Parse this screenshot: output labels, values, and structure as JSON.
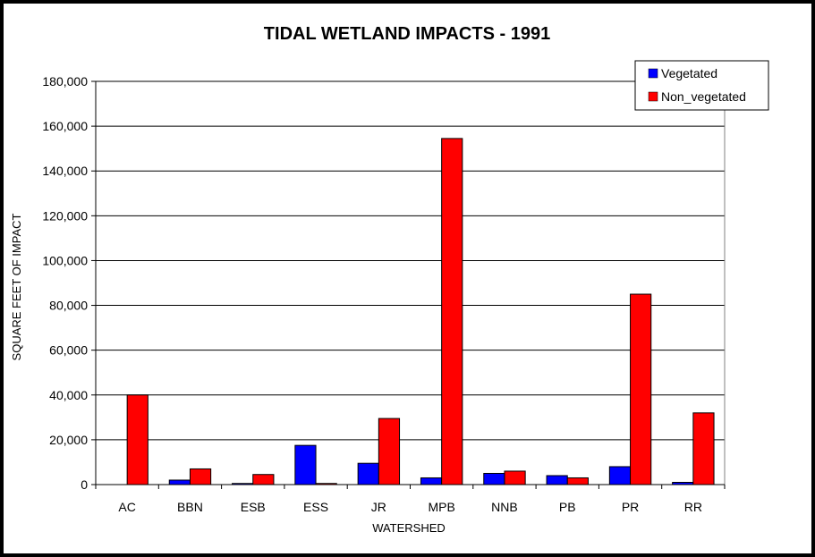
{
  "chart_data": {
    "type": "bar",
    "title": "TIDAL WETLAND IMPACTS - 1991",
    "xlabel": "WATERSHED",
    "ylabel": "SQUARE FEET OF IMPACT",
    "ylim": [
      0,
      180000
    ],
    "yticks": [
      0,
      20000,
      40000,
      60000,
      80000,
      100000,
      120000,
      140000,
      160000,
      180000
    ],
    "ytick_labels": [
      "0",
      "20,000",
      "40,000",
      "60,000",
      "80,000",
      "100,000",
      "120,000",
      "140,000",
      "160,000",
      "180,000"
    ],
    "grid": true,
    "legend_position": "top-right",
    "categories": [
      "AC",
      "BBN",
      "ESB",
      "ESS",
      "JR",
      "MPB",
      "NNB",
      "PB",
      "PR",
      "RR"
    ],
    "series": [
      {
        "name": "Vegetated",
        "color": "#0000FF",
        "values": [
          0,
          2000,
          500,
          17500,
          9500,
          3000,
          5000,
          4000,
          8000,
          1000
        ]
      },
      {
        "name": "Non_vegetated",
        "color": "#FF0000",
        "values": [
          40000,
          7000,
          4500,
          500,
          29500,
          154500,
          6000,
          3000,
          85000,
          32000
        ]
      }
    ]
  }
}
